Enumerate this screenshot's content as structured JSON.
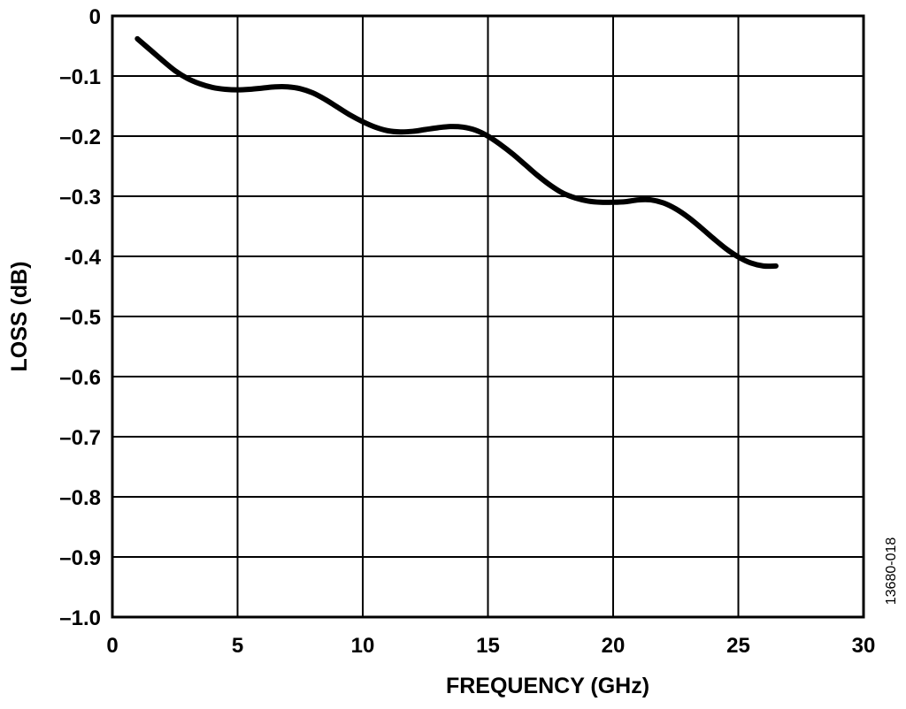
{
  "chart_data": {
    "type": "line",
    "title": "",
    "xlabel": "FREQUENCY (GHz)",
    "ylabel": "LOSS (dB)",
    "xlim": [
      0,
      30
    ],
    "ylim": [
      -1.0,
      0
    ],
    "x_ticks": [
      0,
      5,
      10,
      15,
      20,
      25,
      30
    ],
    "x_tick_labels": [
      "0",
      "5",
      "10",
      "15",
      "20",
      "25",
      "30"
    ],
    "y_ticks": [
      0,
      -0.1,
      -0.2,
      -0.3,
      -0.4,
      -0.5,
      -0.6,
      -0.7,
      -0.8,
      -0.9,
      -1.0
    ],
    "y_tick_labels": [
      "0",
      "–0.1",
      "–0.2",
      "–0.3",
      "-0.4",
      "–0.5",
      "–0.6",
      "–0.7",
      "–0.8",
      "–0.9",
      "–1.0"
    ],
    "grid": true,
    "line_color": "#000000",
    "series": [
      {
        "x": [
          1.0,
          1.5,
          2.0,
          2.5,
          3.0,
          3.5,
          4.0,
          4.5,
          5.0,
          5.5,
          6.0,
          6.5,
          7.0,
          7.5,
          8.0,
          8.5,
          9.0,
          9.5,
          10.0,
          10.5,
          11.0,
          11.5,
          12.0,
          12.5,
          13.0,
          13.5,
          14.0,
          14.5,
          15.0,
          15.5,
          16.0,
          16.5,
          17.0,
          17.5,
          18.0,
          18.5,
          19.0,
          19.5,
          20.0,
          20.5,
          21.0,
          21.5,
          22.0,
          22.5,
          23.0,
          23.5,
          24.0,
          24.5,
          25.0,
          25.5,
          26.0,
          26.5
        ],
        "values": [
          -0.038,
          -0.056,
          -0.074,
          -0.091,
          -0.104,
          -0.113,
          -0.119,
          -0.122,
          -0.123,
          -0.122,
          -0.12,
          -0.118,
          -0.118,
          -0.121,
          -0.128,
          -0.139,
          -0.152,
          -0.165,
          -0.176,
          -0.185,
          -0.191,
          -0.193,
          -0.192,
          -0.189,
          -0.186,
          -0.184,
          -0.185,
          -0.19,
          -0.2,
          -0.214,
          -0.23,
          -0.248,
          -0.266,
          -0.282,
          -0.295,
          -0.303,
          -0.308,
          -0.31,
          -0.31,
          -0.309,
          -0.306,
          -0.306,
          -0.311,
          -0.321,
          -0.335,
          -0.352,
          -0.37,
          -0.387,
          -0.401,
          -0.411,
          -0.416,
          -0.416
        ]
      }
    ]
  },
  "figure_id": "13680-018"
}
